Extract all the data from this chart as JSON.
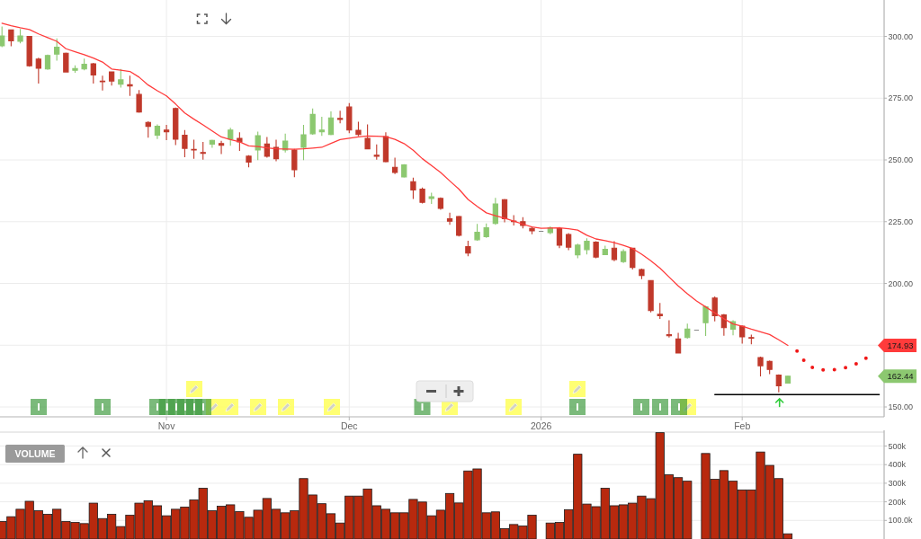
{
  "chart_data": [
    {
      "type": "candlestick",
      "categories": [
        null,
        null,
        null,
        null,
        null,
        null,
        null,
        null,
        null,
        null,
        null,
        null,
        null,
        null,
        null,
        null,
        null,
        null,
        "Nov",
        null,
        null,
        null,
        null,
        null,
        null,
        null,
        null,
        null,
        null,
        null,
        null,
        null,
        null,
        null,
        null,
        null,
        null,
        null,
        "Dec",
        null,
        null,
        null,
        null,
        null,
        null,
        null,
        null,
        null,
        null,
        null,
        null,
        null,
        null,
        null,
        null,
        null,
        null,
        null,
        null,
        "2026",
        null,
        null,
        null,
        null,
        null,
        null,
        null,
        null,
        null,
        null,
        null,
        null,
        null,
        null,
        null,
        null,
        null,
        null,
        null,
        null,
        null,
        "Feb",
        null,
        null,
        null,
        null,
        null,
        null,
        null,
        null,
        null,
        null,
        null,
        null,
        null,
        null,
        null
      ],
      "ohlc": [
        [
          296.2,
          304,
          295.6,
          300.2
        ],
        [
          302.6,
          302.8,
          296,
          298.2
        ],
        [
          298,
          303,
          297.2,
          300.2
        ],
        [
          300,
          300.2,
          287.7,
          288.1
        ],
        [
          290.8,
          291.4,
          280.9,
          287.1
        ],
        [
          286.8,
          292.6,
          286.5,
          292.3
        ],
        [
          292.8,
          299.2,
          290.2,
          295.6
        ],
        [
          293.2,
          293.5,
          285.4,
          285.6
        ],
        [
          286.3,
          288.3,
          285.3,
          287
        ],
        [
          286.8,
          291,
          286.3,
          288.7
        ],
        [
          288.9,
          289.3,
          280.9,
          284.4
        ],
        [
          281.9,
          284.1,
          278.1,
          281.7
        ],
        [
          285.6,
          285.8,
          280.1,
          281.9
        ],
        [
          280.7,
          286.8,
          279.3,
          282.4
        ],
        [
          280.4,
          284.1,
          275.9,
          279.9
        ],
        [
          276.5,
          278.3,
          269.1,
          269.4
        ],
        [
          265.2,
          265.6,
          259,
          263.6
        ],
        [
          260,
          264.4,
          258.5,
          263.6
        ],
        [
          262.1,
          264.2,
          258,
          261.4
        ],
        [
          270.8,
          271.2,
          256,
          258.4
        ],
        [
          260,
          262.1,
          251.1,
          254.7
        ],
        [
          254.3,
          258.2,
          250.5,
          254
        ],
        [
          253,
          257.3,
          250.1,
          252.7
        ],
        [
          256.4,
          258.2,
          254.9,
          257.9
        ],
        [
          256.6,
          257.7,
          252.4,
          255.9
        ],
        [
          258.5,
          263,
          255.7,
          262.1
        ],
        [
          258.7,
          261.2,
          253.6,
          257.3
        ],
        [
          251.5,
          251.9,
          247,
          249.1
        ],
        [
          254,
          261.5,
          249.9,
          259.8
        ],
        [
          256.4,
          259.3,
          250.9,
          251.5
        ],
        [
          255.1,
          258.2,
          249.5,
          250.5
        ],
        [
          254,
          260.6,
          253,
          257.6
        ],
        [
          254,
          254.5,
          243,
          246
        ],
        [
          255.1,
          264.2,
          249.9,
          260.2
        ],
        [
          260.6,
          270.8,
          260.2,
          268.4
        ],
        [
          261.4,
          267.5,
          259.7,
          262.1
        ],
        [
          260.3,
          269.6,
          260,
          267
        ],
        [
          266.8,
          269.9,
          264.8,
          266.4
        ],
        [
          271.4,
          273,
          260.8,
          262.1
        ],
        [
          262,
          265.5,
          259.6,
          260.3
        ],
        [
          258.7,
          264.4,
          254.3,
          254.5
        ],
        [
          251.9,
          256.3,
          250.1,
          251.5
        ],
        [
          259.4,
          261.2,
          249,
          249.3
        ],
        [
          247,
          250.9,
          244.3,
          244.9
        ],
        [
          243.1,
          248.3,
          242.8,
          248
        ],
        [
          241.2,
          242.8,
          234.2,
          237.8
        ],
        [
          238.2,
          238.8,
          232.4,
          232.8
        ],
        [
          234.4,
          236.7,
          232.2,
          235.1
        ],
        [
          234.4,
          234.8,
          229.8,
          230.4
        ],
        [
          226.2,
          228.6,
          223.7,
          225.2
        ],
        [
          227.1,
          227.4,
          219,
          219.5
        ],
        [
          214.9,
          217.3,
          211,
          212.3
        ],
        [
          217.7,
          224.1,
          217.3,
          220.7
        ],
        [
          218.9,
          224.3,
          218.5,
          222.5
        ],
        [
          224.3,
          234.6,
          223.7,
          232.2
        ],
        [
          233.9,
          234.2,
          224.7,
          226.2
        ],
        [
          225.3,
          227.6,
          223.5,
          225
        ],
        [
          225,
          226.8,
          222.3,
          223.5
        ],
        [
          222.3,
          223.1,
          219.9,
          221.3
        ],
        [
          221.1,
          221.1,
          221.1,
          221.1
        ],
        [
          220.6,
          223.1,
          219.9,
          222.5
        ],
        [
          222.2,
          222.8,
          214.3,
          215.5
        ],
        [
          219.8,
          220.4,
          213.5,
          214.7
        ],
        [
          211.6,
          216.1,
          210.2,
          215.5
        ],
        [
          213.7,
          218.3,
          211.7,
          217.1
        ],
        [
          216.7,
          217.1,
          210.2,
          210.7
        ],
        [
          211.7,
          215.3,
          211.5,
          213.8
        ],
        [
          214.3,
          217.1,
          209,
          209.7
        ],
        [
          208.8,
          213.8,
          208.3,
          212.9
        ],
        [
          214.3,
          214.5,
          205.6,
          206.5
        ],
        [
          205.6,
          206,
          201.7,
          203.2
        ],
        [
          201.2,
          201.2,
          188.3,
          189
        ],
        [
          187.5,
          192.1,
          185.6,
          186.9
        ],
        [
          179.3,
          185.1,
          178.1,
          178.8
        ],
        [
          177.5,
          180,
          171.6,
          171.8
        ],
        [
          178.1,
          183.7,
          177.6,
          181.5
        ],
        [
          181.1,
          181.1,
          181.1,
          181.1
        ],
        [
          184.1,
          190.9,
          178.7,
          190.5
        ],
        [
          194.1,
          194.7,
          184.6,
          186.9
        ],
        [
          187.3,
          187.6,
          178.8,
          182.1
        ],
        [
          181.5,
          185.1,
          179,
          184.5
        ],
        [
          182.7,
          183,
          175.6,
          178.4
        ],
        [
          178.1,
          179.3,
          175.4,
          177.8
        ],
        [
          170,
          170.4,
          162.4,
          166.7
        ],
        [
          168.4,
          168.8,
          163.3,
          165.2
        ],
        [
          162.9,
          163.2,
          155.9,
          158.6
        ],
        [
          159.7,
          162.7,
          159.5,
          162.44
        ],
        null,
        null,
        null,
        null,
        null,
        null,
        null,
        null,
        null,
        null
      ],
      "colors": [
        "#8cc870",
        "#c0392b",
        "#8cc870",
        "#c0392b",
        "#c0392b",
        "#8cc870",
        "#8cc870",
        "#c0392b",
        "#8cc870",
        "#8cc870",
        "#c0392b",
        "#c0392b",
        "#c0392b",
        "#8cc870",
        "#c0392b",
        "#c0392b",
        "#c0392b",
        "#8cc870",
        "#c0392b",
        "#c0392b",
        "#c0392b",
        "#c0392b",
        "#c0392b",
        "#8cc870",
        "#c0392b",
        "#8cc870",
        "#c0392b",
        "#c0392b",
        "#8cc870",
        "#c0392b",
        "#c0392b",
        "#8cc870",
        "#c0392b",
        "#8cc870",
        "#8cc870",
        "#8cc870",
        "#8cc870",
        "#c0392b",
        "#c0392b",
        "#c0392b",
        "#c0392b",
        "#c0392b",
        "#c0392b",
        "#c0392b",
        "#8cc870",
        "#c0392b",
        "#c0392b",
        "#8cc870",
        "#c0392b",
        "#c0392b",
        "#c0392b",
        "#c0392b",
        "#8cc870",
        "#8cc870",
        "#8cc870",
        "#c0392b",
        "#c0392b",
        "#c0392b",
        "#c0392b",
        "#888888",
        "#8cc870",
        "#c0392b",
        "#c0392b",
        "#8cc870",
        "#8cc870",
        "#c0392b",
        "#8cc870",
        "#c0392b",
        "#8cc870",
        "#c0392b",
        "#c0392b",
        "#c0392b",
        "#c0392b",
        "#c0392b",
        "#c0392b",
        "#8cc870",
        "#888888",
        "#8cc870",
        "#c0392b",
        "#c0392b",
        "#8cc870",
        "#c0392b",
        "#c0392b",
        "#c0392b",
        "#c0392b",
        "#c0392b",
        "#8cc870",
        null,
        null,
        null,
        null,
        null,
        null,
        null,
        null,
        null,
        null
      ],
      "series": [
        {
          "type": "line",
          "color": "#ff3b3b",
          "values": [
            305.3,
            304.3,
            303.5,
            302.8,
            301.0,
            299.5,
            298.0,
            295.0,
            293.8,
            292.6,
            291.2,
            289.6,
            286.8,
            286.3,
            285.8,
            283.5,
            280.3,
            278.0,
            275.9,
            272.6,
            269.0,
            266.5,
            264.2,
            261.7,
            259.3,
            258.2,
            257.3,
            255.7,
            255.4,
            254.9,
            254.5,
            254.4,
            254.3,
            254.5,
            254.8,
            255.1,
            256.7,
            258.2,
            258.8,
            259.3,
            259.7,
            259.6,
            259.4,
            258.3,
            256.6,
            253.9,
            250.5,
            247.7,
            244.9,
            241.5,
            238.2,
            234.0,
            231.2,
            228.6,
            227.4,
            226.4,
            225.2,
            224.0,
            222.9,
            222.3,
            222.4,
            222.5,
            222.1,
            221.6,
            219.5,
            218.0,
            217.3,
            216.5,
            215.4,
            214.1,
            211.8,
            209.2,
            206.2,
            202.6,
            199.0,
            195.8,
            192.9,
            190.5,
            188.1,
            185.7,
            183.6,
            182.7,
            181.5,
            180.4,
            179.3,
            177.2,
            174.93,
            null,
            null,
            null,
            null,
            null,
            null,
            null,
            null,
            null,
            null
          ]
        },
        {
          "type": "line",
          "color": "#f01818",
          "line_style": "dotted",
          "values": [
            null,
            null,
            null,
            null,
            null,
            null,
            null,
            null,
            null,
            null,
            null,
            null,
            null,
            null,
            null,
            null,
            null,
            null,
            null,
            null,
            null,
            null,
            null,
            null,
            null,
            null,
            null,
            null,
            null,
            null,
            null,
            null,
            null,
            null,
            null,
            null,
            null,
            null,
            null,
            null,
            null,
            null,
            null,
            null,
            null,
            null,
            null,
            null,
            null,
            null,
            null,
            null,
            null,
            null,
            null,
            null,
            null,
            null,
            null,
            null,
            null,
            null,
            null,
            null,
            null,
            null,
            null,
            null,
            null,
            null,
            null,
            null,
            null,
            null,
            null,
            null,
            null,
            null,
            null,
            null,
            null,
            null,
            null,
            null,
            null,
            null,
            null,
            172.6,
            167.6,
            165.3,
            164.9,
            165.0,
            165.5,
            166.7,
            168.3,
            170.9,
            null
          ]
        },
        {
          "type": "line",
          "color": "#000000",
          "values": [
            null,
            null,
            null,
            null,
            null,
            null,
            null,
            null,
            null,
            null,
            null,
            null,
            null,
            null,
            null,
            null,
            null,
            null,
            null,
            null,
            null,
            null,
            null,
            null,
            null,
            null,
            null,
            null,
            null,
            null,
            null,
            null,
            null,
            null,
            null,
            null,
            null,
            null,
            null,
            null,
            null,
            null,
            null,
            null,
            null,
            null,
            null,
            null,
            null,
            null,
            null,
            null,
            null,
            null,
            null,
            null,
            null,
            null,
            null,
            null,
            null,
            null,
            null,
            null,
            null,
            null,
            null,
            null,
            null,
            null,
            null,
            null,
            null,
            null,
            null,
            null,
            null,
            null,
            155,
            155,
            155,
            155,
            155,
            155,
            155,
            155,
            155,
            155,
            155,
            155,
            155,
            155,
            155,
            155,
            155,
            155,
            155
          ]
        }
      ],
      "ylim": [
        146,
        314
      ],
      "yticks": [
        {
          "value": 150,
          "label": "150.00"
        },
        {
          "value": 175,
          "label": null
        },
        {
          "value": 200,
          "label": "200.00"
        },
        {
          "value": 225,
          "label": "225.00"
        },
        {
          "value": 250,
          "label": "250.00"
        },
        {
          "value": 275,
          "label": "275.00"
        },
        {
          "value": 300,
          "label": "300.00"
        }
      ],
      "grid": true,
      "annotations": [
        "174.93",
        "162.44"
      ]
    },
    {
      "type": "bar",
      "title": "VOLUME",
      "categories": [
        null,
        null,
        null,
        null,
        null,
        null,
        null,
        null,
        null,
        null,
        null,
        null,
        null,
        null,
        null,
        null,
        null,
        null,
        null,
        null,
        null,
        null,
        null,
        null,
        null,
        null,
        null,
        null,
        null,
        null,
        null,
        null,
        null,
        null,
        null,
        null,
        null,
        null,
        null,
        null,
        null,
        null,
        null,
        null,
        null,
        null,
        null,
        null,
        null,
        null,
        null,
        null,
        null,
        null,
        null,
        null,
        null,
        null,
        null,
        null,
        null,
        null,
        null,
        null,
        null,
        null,
        null,
        null,
        null,
        null,
        null,
        null,
        null,
        null,
        null,
        null,
        null,
        null,
        null,
        null,
        null,
        null,
        null,
        null,
        null,
        null,
        null,
        null,
        null,
        null,
        null,
        null,
        null,
        null,
        null,
        null,
        null
      ],
      "values": [
        94000,
        120000,
        160000,
        203000,
        152000,
        133000,
        160000,
        94000,
        89000,
        83000,
        193000,
        110000,
        133000,
        67000,
        128000,
        193000,
        206000,
        179000,
        125000,
        160000,
        172000,
        210000,
        273000,
        152000,
        176000,
        184000,
        147000,
        117000,
        155000,
        218000,
        160000,
        141000,
        152000,
        325000,
        237000,
        190000,
        136000,
        86000,
        231000,
        231000,
        269000,
        179000,
        160000,
        141000,
        141000,
        213000,
        199000,
        125000,
        155000,
        245000,
        194000,
        366000,
        377000,
        141000,
        146000,
        56000,
        78000,
        70000,
        128000,
        null,
        86000,
        89000,
        158000,
        456000,
        188000,
        174000,
        273000,
        179000,
        184000,
        193000,
        231000,
        217000,
        572000,
        346000,
        330000,
        311000,
        null,
        460000,
        321000,
        368000,
        311000,
        264000,
        264000,
        468000,
        396000,
        325000,
        28000,
        null,
        null,
        null,
        null,
        null,
        null,
        null,
        null,
        null,
        null
      ],
      "color": "#b8290e",
      "ylim": [
        0,
        575000
      ],
      "yticks": [
        {
          "value": 100000,
          "label": "100.0k"
        },
        {
          "value": 200000,
          "label": "200k"
        },
        {
          "value": 300000,
          "label": "300k"
        },
        {
          "value": 400000,
          "label": "400k"
        },
        {
          "value": 500000,
          "label": "500k"
        }
      ],
      "grid": "y",
      "tick_labels": "y"
    }
  ]
}
